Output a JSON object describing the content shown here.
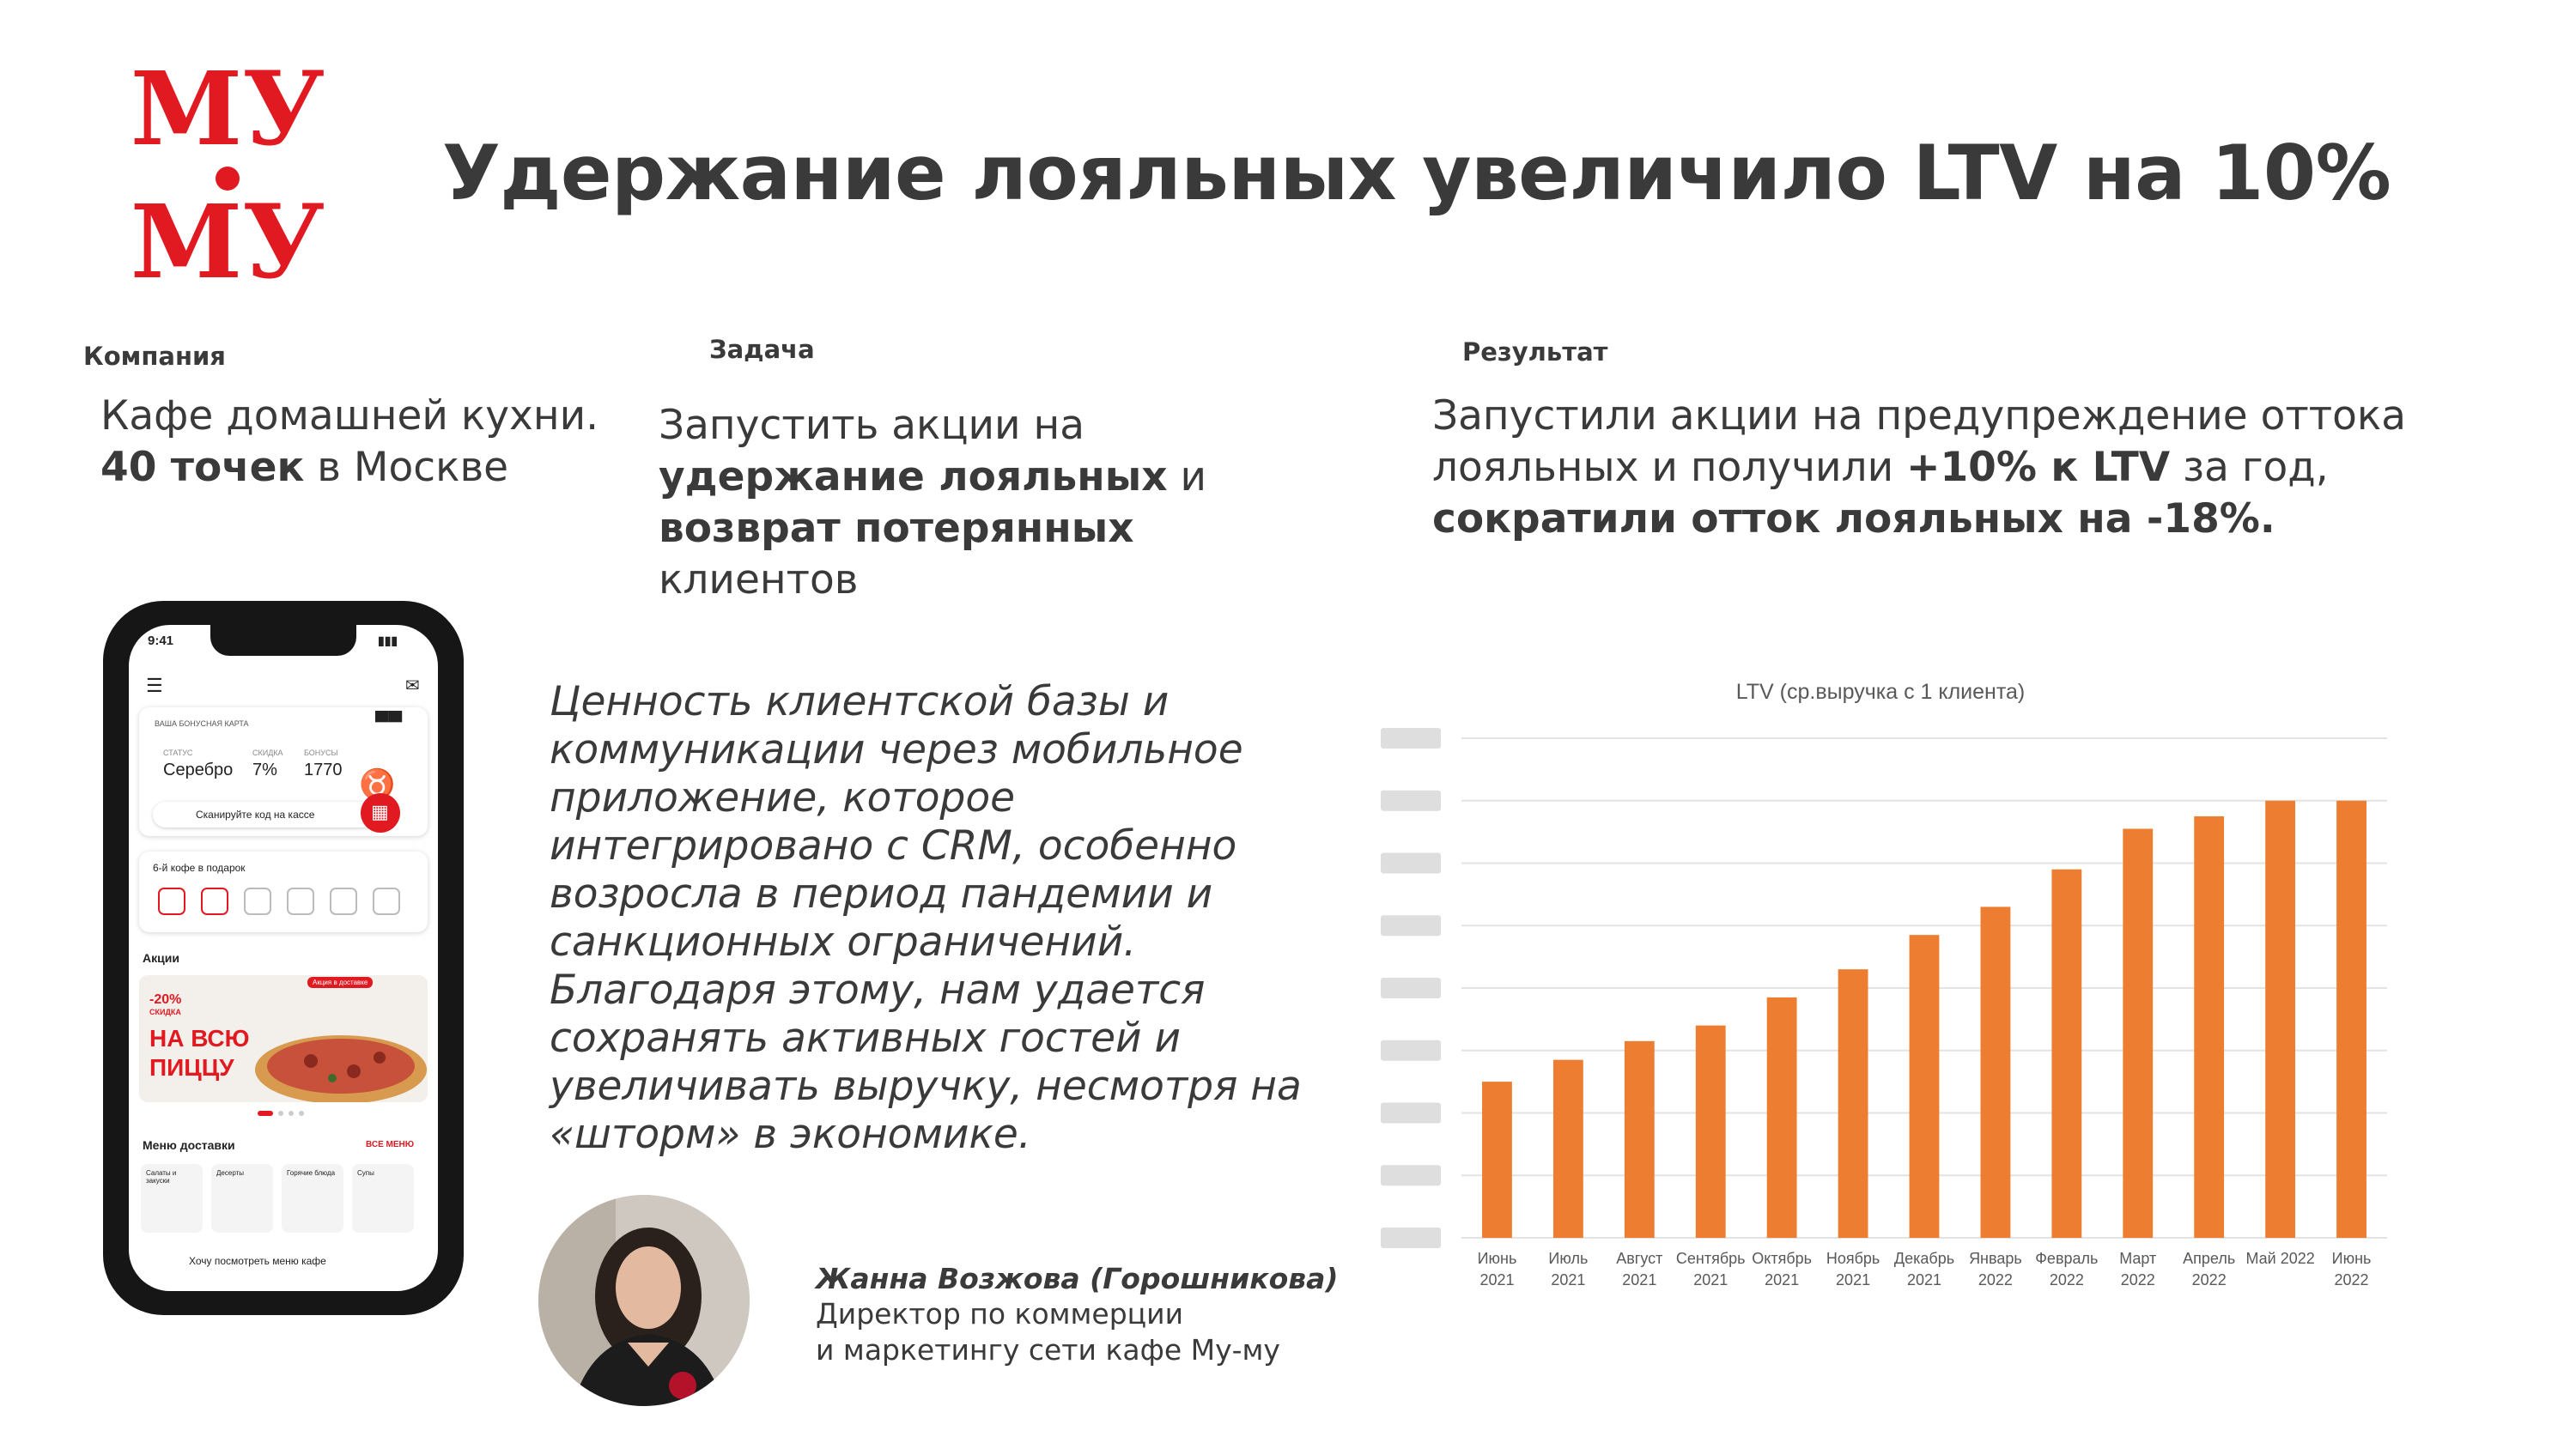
{
  "title": "Удержание лояльных увеличило LTV на 10%",
  "logo": {
    "line1": "МУ",
    "line2": "МУ"
  },
  "company": {
    "caption": "Компания",
    "line1": "Кафе домашней кухни.",
    "bold": "40 точек",
    "rest": " в Москве"
  },
  "task": {
    "caption": "Задача",
    "p1": "Запустить акции на ",
    "b1": "удержание лояльных",
    "p2": " и ",
    "b2": "возврат потерянных",
    "p3": " клиентов"
  },
  "result": {
    "caption": "Результат",
    "p1": "Запустили акции на предупреждение оттока лояльных и получили ",
    "b1": "+10% к LTV",
    "p2": " за год, ",
    "b2": "сократили отток лояльных на -18%."
  },
  "quote": "Ценность клиентской базы и коммуникации через мобильное приложение, которое интегрировано с CRM, особенно возросла в период пандемии и санкционных ограничений. Благодаря этому, нам удается сохранять активных гостей и увеличивать выручку, несмотря на «шторм» в экономике.",
  "author": {
    "name": "Жанна Возжова (Горошникова)",
    "role1": "Директор по коммерции",
    "role2": "и маркетингу сети кафе Му-му"
  },
  "phone": {
    "time": "9:41",
    "card_label": "ВАША БОНУСНАЯ КАРТА",
    "status_label": "СТАТУС",
    "status_value": "Серебро",
    "discount_label": "СКИДКА",
    "discount_value": "7%",
    "bonus_label": "БОНУСЫ",
    "bonus_value": "1770",
    "scan": "Сканируйте код на кассе",
    "coffee": "6-й кофе в подарок",
    "promos": "Акции",
    "promo_tag": "Акция в доставке",
    "promo_pct": "-20%",
    "promo_word": "СКИДКА",
    "promo_l1": "НА ВСЮ",
    "promo_l2": "ПИЦЦУ",
    "menu": "Меню доставки",
    "menu_all": "ВСЕ МЕНЮ",
    "food": [
      "Салаты и закуски",
      "Десерты",
      "Горячие блюда",
      "Супы"
    ],
    "bottom": "Хочу посмотреть меню кафе",
    "accent": "#e11a22"
  },
  "chart_data": {
    "type": "bar",
    "title": "LTV (ср.выручка с 1 клиента)",
    "categories": [
      [
        "Июнь",
        "2021"
      ],
      [
        "Июль",
        "2021"
      ],
      [
        "Август",
        "2021"
      ],
      [
        "Сентябрь",
        "2021"
      ],
      [
        "Октябрь",
        "2021"
      ],
      [
        "Ноябрь",
        "2021"
      ],
      [
        "Декабрь",
        "2021"
      ],
      [
        "Январь",
        "2022"
      ],
      [
        "Февраль",
        "2022"
      ],
      [
        "Март",
        "2022"
      ],
      [
        "Апрель",
        "2022"
      ],
      [
        "Май 2022",
        ""
      ],
      [
        "Июнь",
        "2022"
      ]
    ],
    "values": [
      2.5,
      2.85,
      3.15,
      3.4,
      3.85,
      4.3,
      4.85,
      5.3,
      5.9,
      6.55,
      6.75,
      7.0,
      7.0
    ],
    "ylim": [
      0,
      8
    ],
    "yticks_hidden": true,
    "grid": true,
    "bar_color": "#ed7d31"
  }
}
